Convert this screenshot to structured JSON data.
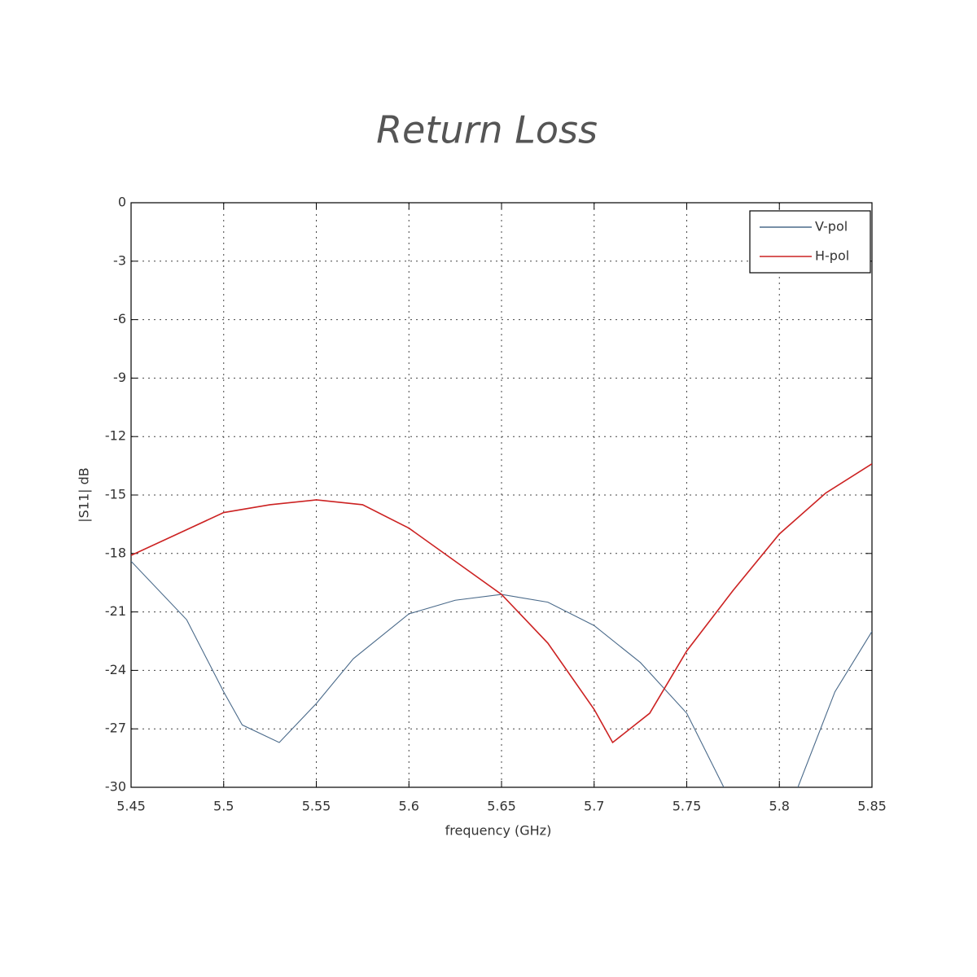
{
  "chart_data": {
    "type": "line",
    "title": "Return Loss",
    "xlabel": "frequency (GHz)",
    "ylabel": "|S11| dB",
    "xlim": [
      5.45,
      5.85
    ],
    "ylim": [
      -30,
      0
    ],
    "xticks": [
      5.45,
      5.5,
      5.55,
      5.6,
      5.65,
      5.7,
      5.75,
      5.8,
      5.85
    ],
    "yticks": [
      0,
      -3,
      -6,
      -9,
      -12,
      -15,
      -18,
      -21,
      -24,
      -27,
      -30
    ],
    "grid": true,
    "legend": "upper right",
    "series": [
      {
        "name": "V-pol",
        "color": "#4a6a8a",
        "x": [
          5.45,
          5.48,
          5.5,
          5.51,
          5.53,
          5.55,
          5.57,
          5.6,
          5.625,
          5.65,
          5.675,
          5.7,
          5.725,
          5.75,
          5.77,
          5.78,
          5.79,
          5.8,
          5.81,
          5.83,
          5.85
        ],
        "values": [
          -18.4,
          -21.4,
          -25.1,
          -26.8,
          -27.7,
          -25.7,
          -23.4,
          -21.1,
          -20.4,
          -20.1,
          -20.5,
          -21.7,
          -23.6,
          -26.2,
          -30,
          null,
          null,
          null,
          -30,
          -25.1,
          -22
        ]
      },
      {
        "name": "H-pol",
        "color": "#cc2222",
        "x": [
          5.45,
          5.475,
          5.5,
          5.525,
          5.55,
          5.575,
          5.6,
          5.625,
          5.65,
          5.675,
          5.7,
          5.71,
          5.73,
          5.75,
          5.775,
          5.8,
          5.825,
          5.85
        ],
        "values": [
          -18.1,
          -17.0,
          -15.9,
          -15.5,
          -15.25,
          -15.5,
          -16.7,
          -18.4,
          -20.1,
          -22.6,
          -26.0,
          -27.7,
          -26.2,
          -23.0,
          -19.9,
          -17.0,
          -14.9,
          -13.4
        ]
      }
    ]
  }
}
